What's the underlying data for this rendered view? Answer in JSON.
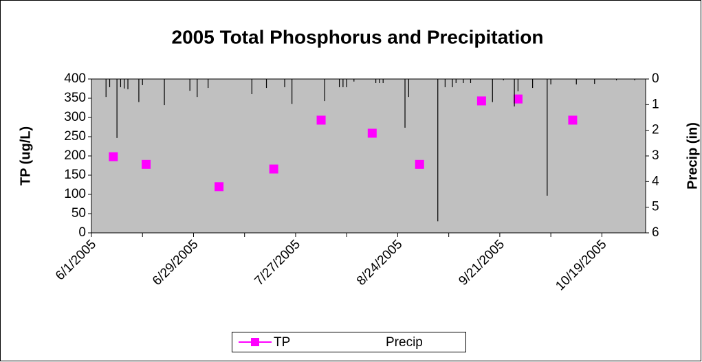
{
  "chart_data": {
    "type": "scatter",
    "title": "2005 Total Phosphorus and Precipitation",
    "y_label": "TP (ug/L)",
    "y2_label": "Precip (in)",
    "xlim": [
      "2005-06-01",
      "2005-10-31"
    ],
    "xticks": [
      {
        "value": "2005-06-01",
        "label": "6/1/2005"
      },
      {
        "value": "2005-06-29",
        "label": "6/29/2005"
      },
      {
        "value": "2005-07-27",
        "label": "7/27/2005"
      },
      {
        "value": "2005-08-24",
        "label": "8/24/2005"
      },
      {
        "value": "2005-09-21",
        "label": "9/21/2005"
      },
      {
        "value": "2005-10-19",
        "label": "10/19/2005"
      }
    ],
    "x_minor_ticks": [
      "2005-06-15",
      "2005-07-13",
      "2005-08-10",
      "2005-09-07",
      "2005-10-05"
    ],
    "ylim": [
      0,
      400
    ],
    "yticks": [
      0,
      50,
      100,
      150,
      200,
      250,
      300,
      350,
      400
    ],
    "y2lim": [
      0,
      6
    ],
    "y2ticks": [
      0,
      1,
      2,
      3,
      4,
      5,
      6
    ],
    "y2_inverted": true,
    "plot_background": "#c0c0c0",
    "legend": "bottom",
    "series": [
      {
        "name": "TP",
        "color": "#ff00ff",
        "marker": "square",
        "x": [
          "2005-06-07",
          "2005-06-16",
          "2005-07-06",
          "2005-07-21",
          "2005-08-03",
          "2005-08-17",
          "2005-08-30",
          "2005-09-16",
          "2005-09-26",
          "2005-10-11"
        ],
        "values": [
          198,
          178,
          120,
          166,
          293,
          259,
          178,
          343,
          348,
          293
        ]
      },
      {
        "name": "Precip",
        "color": "#000000",
        "marker": "drop-line",
        "axis": "y2",
        "x": [
          "2005-06-05",
          "2005-06-06",
          "2005-06-08",
          "2005-06-09",
          "2005-06-10",
          "2005-06-11",
          "2005-06-14",
          "2005-06-15",
          "2005-06-21",
          "2005-06-28",
          "2005-06-30",
          "2005-07-03",
          "2005-07-15",
          "2005-07-19",
          "2005-07-24",
          "2005-07-26",
          "2005-08-04",
          "2005-08-08",
          "2005-08-09",
          "2005-08-10",
          "2005-08-12",
          "2005-08-18",
          "2005-08-19",
          "2005-08-20",
          "2005-08-26",
          "2005-08-27",
          "2005-09-04",
          "2005-09-06",
          "2005-09-08",
          "2005-09-09",
          "2005-09-11",
          "2005-09-13",
          "2005-09-19",
          "2005-09-22",
          "2005-09-25",
          "2005-09-26",
          "2005-09-30",
          "2005-10-04",
          "2005-10-05",
          "2005-10-12",
          "2005-10-17",
          "2005-10-23",
          "2005-10-28"
        ],
        "values": [
          0.7,
          0.32,
          2.3,
          0.32,
          0.37,
          0.4,
          0.9,
          0.24,
          1.02,
          0.46,
          0.7,
          0.35,
          0.59,
          0.35,
          0.32,
          0.97,
          0.86,
          0.32,
          0.32,
          0.32,
          0.1,
          0.16,
          0.16,
          0.16,
          1.9,
          0.7,
          5.55,
          0.32,
          0.32,
          0.16,
          0.16,
          0.16,
          0.9,
          0.05,
          1.07,
          0.48,
          0.35,
          4.55,
          0.21,
          0.21,
          0.19,
          0.05,
          0.05
        ]
      }
    ]
  }
}
